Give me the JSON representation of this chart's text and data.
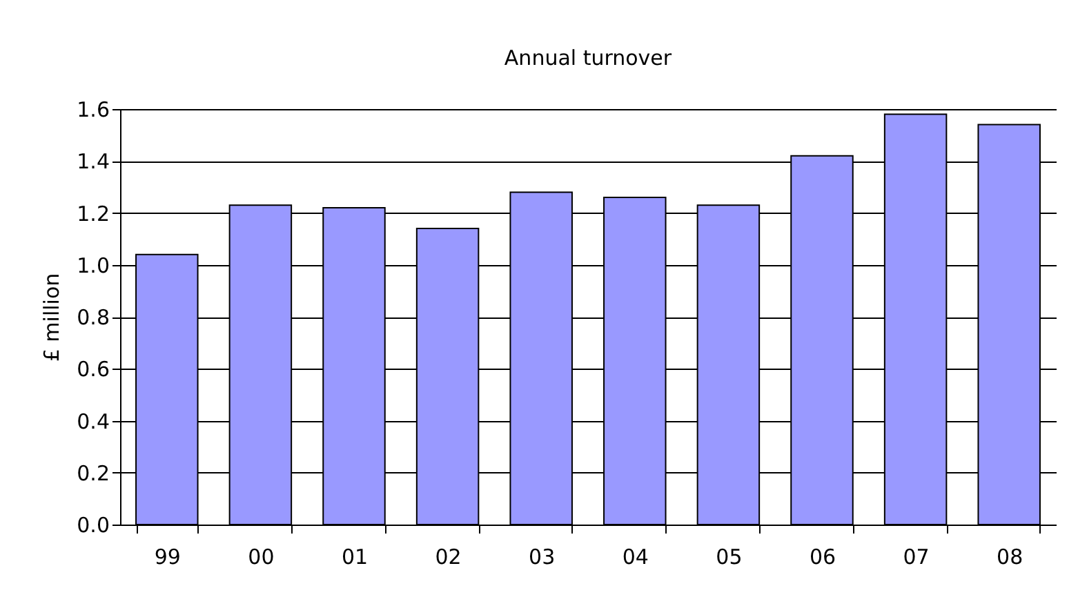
{
  "chart_data": {
    "type": "bar",
    "title": "Annual turnover",
    "ylabel": "£ million",
    "categories": [
      "99",
      "00",
      "01",
      "02",
      "03",
      "04",
      "05",
      "06",
      "07",
      "08"
    ],
    "values": [
      1.04,
      1.23,
      1.22,
      1.14,
      1.28,
      1.26,
      1.23,
      1.42,
      1.58,
      1.54
    ],
    "color": "#9999ff",
    "ylim": [
      0,
      1.6
    ],
    "yticks": [
      {
        "value": 0,
        "label": "0.0"
      },
      0.2,
      0.4,
      0.6,
      0.8,
      {
        "value": 1,
        "label": "1.0"
      },
      1.2,
      1.4,
      1.6
    ],
    "grid": "y"
  }
}
